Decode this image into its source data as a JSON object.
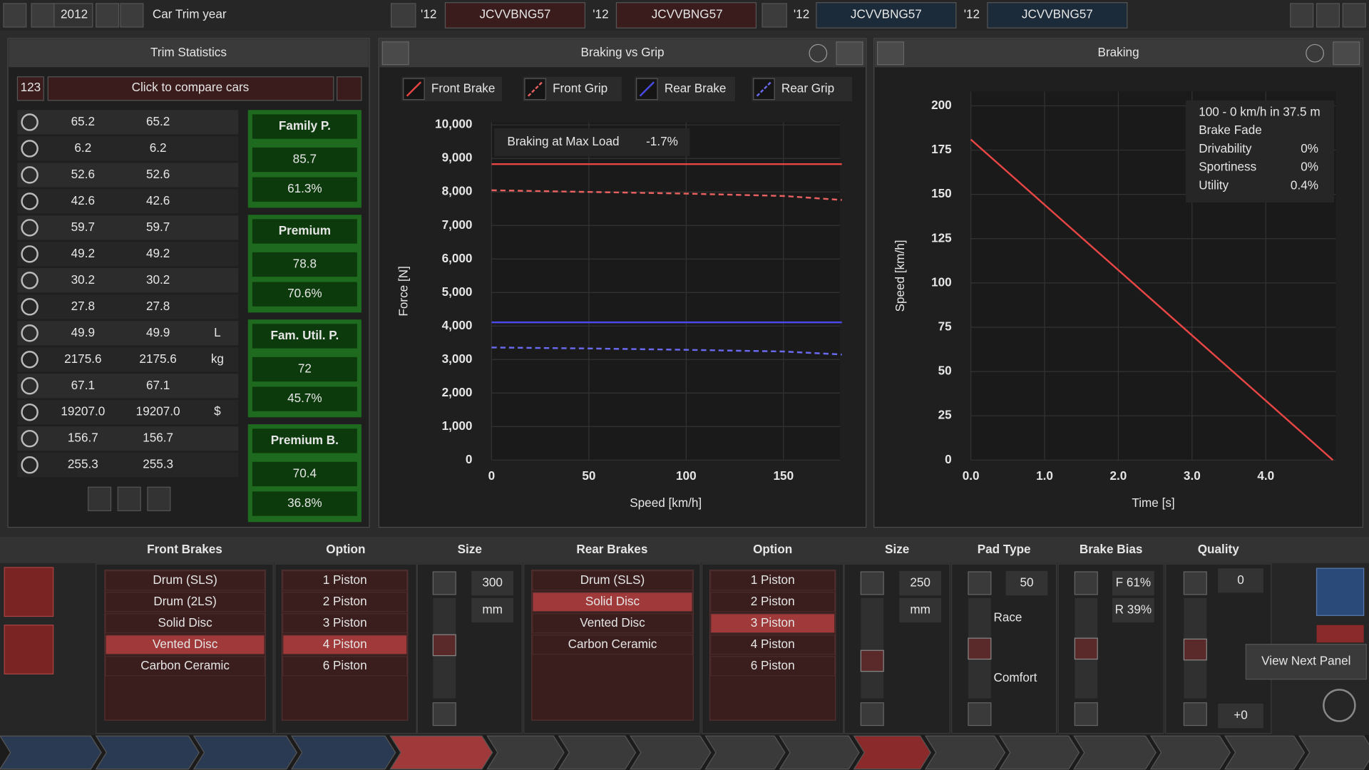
{
  "top_bar": {
    "year": "2012",
    "label": "Car Trim year",
    "cars": [
      {
        "year": "'12",
        "code": "JCVVBNG57"
      },
      {
        "year": "'12",
        "code": "JCVVBNG57"
      },
      {
        "year": "'12",
        "code": "JCVVBNG57"
      },
      {
        "year": "'12",
        "code": "JCVVBNG57"
      }
    ]
  },
  "trim_statistics": {
    "title": "Trim Statistics",
    "compare_count": "123",
    "compare_button": "Click to compare cars",
    "rows": [
      {
        "values": [
          "65.2",
          "65.2"
        ]
      },
      {
        "values": [
          "6.2",
          "6.2"
        ]
      },
      {
        "values": [
          "52.6",
          "52.6"
        ]
      },
      {
        "values": [
          "42.6",
          "42.6"
        ]
      },
      {
        "values": [
          "59.7",
          "59.7"
        ]
      },
      {
        "values": [
          "49.2",
          "49.2"
        ]
      },
      {
        "values": [
          "30.2",
          "30.2"
        ]
      },
      {
        "values": [
          "27.8",
          "27.8"
        ]
      },
      {
        "values": [
          "49.9",
          "49.9"
        ],
        "unit": "L"
      },
      {
        "values": [
          "2175.6",
          "2175.6"
        ],
        "unit": "kg"
      },
      {
        "values": [
          "67.1",
          "67.1"
        ]
      },
      {
        "values": [
          "19207.0",
          "19207.0"
        ],
        "unit": "$"
      },
      {
        "values": [
          "156.7",
          "156.7"
        ]
      },
      {
        "values": [
          "255.3",
          "255.3"
        ]
      }
    ],
    "groups": [
      {
        "name": "Family P.",
        "score": "85.7",
        "percent": "61.3%"
      },
      {
        "name": "Premium",
        "score": "78.8",
        "percent": "70.6%"
      },
      {
        "name": "Fam. Util. P.",
        "score": "72",
        "percent": "45.7%"
      },
      {
        "name": "Premium B.",
        "score": "70.4",
        "percent": "36.8%"
      }
    ]
  },
  "chart_data": [
    {
      "type": "line",
      "title": "Braking vs Grip",
      "x_label": "Speed [km/h]",
      "y_label": "Force [N]",
      "annotation": {
        "label": "Braking at Max Load",
        "value": "-1.7%"
      },
      "x": [
        0,
        50,
        100,
        150,
        180
      ],
      "series": [
        {
          "name": "Front Brake",
          "color": "#e84545",
          "line_style": "solid",
          "values": [
            8830,
            8830,
            8830,
            8830,
            8830
          ]
        },
        {
          "name": "Front Grip",
          "color": "#e86060",
          "line_style": "dashed",
          "values": [
            8050,
            8000,
            7950,
            7880,
            7760
          ]
        },
        {
          "name": "Rear Brake",
          "color": "#4a4ae8",
          "line_style": "solid",
          "values": [
            4110,
            4110,
            4110,
            4110,
            4110
          ]
        },
        {
          "name": "Rear Grip",
          "color": "#6a6af0",
          "line_style": "dashed",
          "values": [
            3360,
            3330,
            3290,
            3240,
            3150
          ]
        }
      ],
      "xlim": [
        0,
        179
      ],
      "ylim": [
        0,
        10080
      ],
      "xticks": [
        0,
        50,
        100,
        150
      ],
      "yticks": [
        0,
        {
          "value": 1000,
          "label": "1,000"
        },
        {
          "value": 2000,
          "label": "2,000"
        },
        {
          "value": 3000,
          "label": "3,000"
        },
        {
          "value": 4000,
          "label": "4,000"
        },
        {
          "value": 5000,
          "label": "5,000"
        },
        {
          "value": 6000,
          "label": "6,000"
        },
        {
          "value": 7000,
          "label": "7,000"
        },
        {
          "value": 8000,
          "label": "8,000"
        },
        {
          "value": 9000,
          "label": "9,000"
        },
        {
          "value": 10000,
          "label": "10,000"
        }
      ],
      "grid": true,
      "legend": "top"
    },
    {
      "type": "line",
      "title": "Braking",
      "x_label": "Time [s]",
      "y_label": "Speed [km/h]",
      "info": [
        {
          "label": "100 - 0 km/h in 37.5 m"
        },
        {
          "label": "Brake Fade"
        },
        {
          "label": "Drivability",
          "value": "0%"
        },
        {
          "label": "Sportiness",
          "value": "0%"
        },
        {
          "label": "Utility",
          "value": "0.4%"
        }
      ],
      "x": [
        0,
        4.91
      ],
      "values": [
        181,
        0
      ],
      "color": "#e84545",
      "xlim": [
        0,
        4.95
      ],
      "ylim": [
        0,
        208
      ],
      "xticks": [
        {
          "value": 0,
          "label": "0.0"
        },
        {
          "value": 1,
          "label": "1.0"
        },
        {
          "value": 2,
          "label": "2.0"
        },
        {
          "value": 3,
          "label": "3.0"
        },
        {
          "value": 4,
          "label": "4.0"
        }
      ],
      "yticks": [
        0,
        25,
        50,
        75,
        100,
        125,
        150,
        175,
        200
      ],
      "grid": true
    }
  ],
  "brakes": {
    "headers": [
      "Front Brakes",
      "Option",
      "Size",
      "Rear Brakes",
      "Option",
      "Size",
      "Pad Type",
      "Brake Bias",
      "Quality"
    ],
    "front_types": {
      "items": [
        "Drum (SLS)",
        "Drum (2LS)",
        "Solid Disc",
        "Vented Disc",
        "Carbon Ceramic"
      ],
      "selected": 3
    },
    "front_options": {
      "items": [
        "1 Piston",
        "2 Piston",
        "3 Piston",
        "4 Piston",
        "6 Piston"
      ],
      "selected": 3
    },
    "rear_types": {
      "items": [
        "Drum (SLS)",
        "Solid Disc",
        "Vented Disc",
        "Carbon Ceramic"
      ],
      "selected": 1
    },
    "rear_options": {
      "items": [
        "1 Piston",
        "2 Piston",
        "3 Piston",
        "4 Piston",
        "6 Piston"
      ],
      "selected": 2
    },
    "front_size": {
      "value": "300",
      "unit": "mm"
    },
    "rear_size": {
      "value": "250",
      "unit": "mm"
    },
    "pad_type": {
      "value": "50",
      "high": "Race",
      "low": "Comfort"
    },
    "brake_bias": {
      "front": "F 61%",
      "rear": "R 39%"
    },
    "quality": {
      "value": "0",
      "delta": "+0"
    },
    "tooltip": "View Next Panel"
  }
}
